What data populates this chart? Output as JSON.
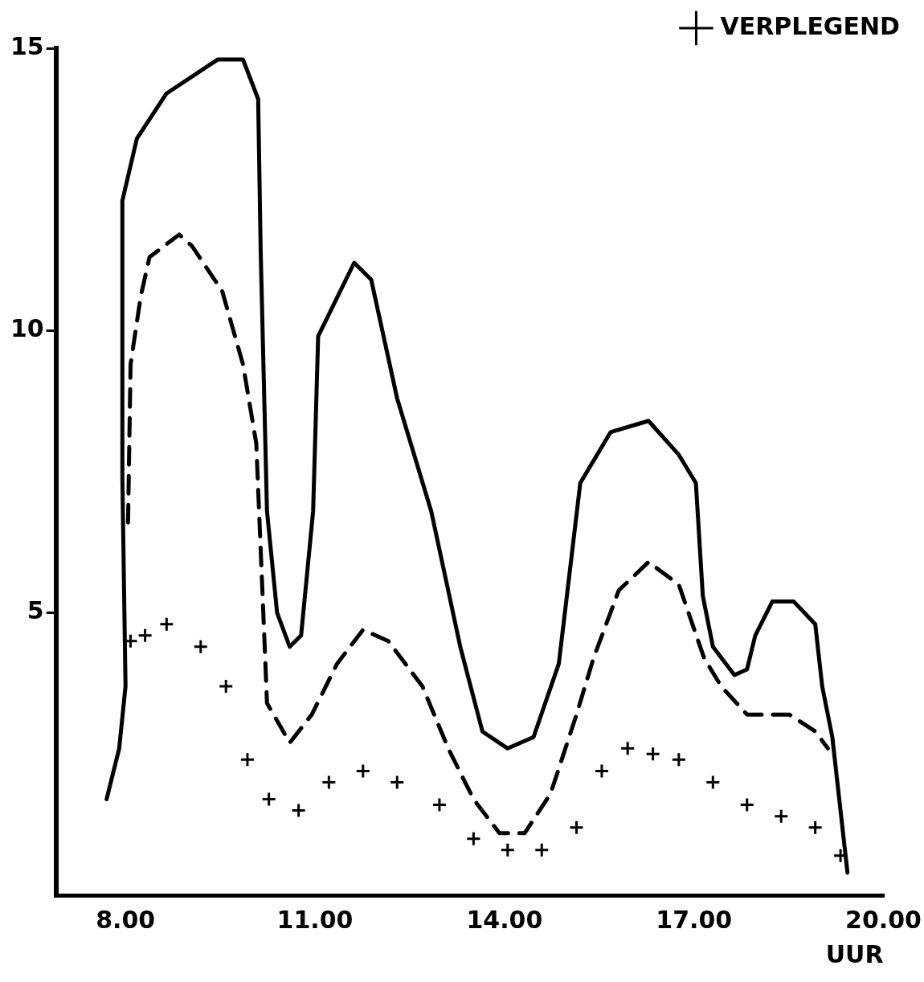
{
  "chart_data": {
    "type": "line",
    "xlabel": "UUR",
    "xlim": [
      6.9,
      20.0
    ],
    "ylim": [
      0,
      15
    ],
    "xticks": [
      {
        "value": 8,
        "label": "8.00"
      },
      {
        "value": 11,
        "label": "11.00"
      },
      {
        "value": 14,
        "label": "14.00"
      },
      {
        "value": 17,
        "label": "17.00"
      },
      {
        "value": 20,
        "label": "20.00"
      }
    ],
    "yticks": [
      5,
      10,
      15
    ],
    "grid": false,
    "legend": "top right",
    "series": [
      {
        "type": "line",
        "color": "#000000",
        "line_style": "solid",
        "marker": "none",
        "x": [
          7.7,
          7.9,
          8.0,
          7.95,
          7.95,
          8.18,
          8.65,
          9.46,
          9.86,
          10.1,
          10.14,
          10.24,
          10.4,
          10.6,
          10.78,
          10.97,
          11.05,
          11.62,
          11.89,
          12.3,
          12.84,
          13.3,
          13.65,
          14.05,
          14.46,
          14.86,
          15.2,
          15.68,
          16.28,
          16.76,
          17.03,
          17.14,
          17.3,
          17.64,
          17.84,
          17.97,
          18.24,
          18.58,
          18.92,
          19.03,
          19.19,
          19.43
        ],
        "values": [
          1.7,
          2.6,
          3.7,
          7.4,
          12.3,
          13.4,
          14.2,
          14.8,
          14.8,
          14.1,
          11.4,
          6.8,
          5.0,
          4.4,
          4.6,
          6.8,
          9.9,
          11.2,
          10.9,
          8.8,
          6.8,
          4.4,
          2.9,
          2.6,
          2.8,
          4.1,
          7.3,
          8.2,
          8.4,
          7.8,
          7.3,
          5.3,
          4.4,
          3.9,
          4.0,
          4.6,
          5.2,
          5.2,
          4.8,
          3.7,
          2.8,
          0.4
        ]
      },
      {
        "type": "line",
        "color": "#000000",
        "line_style": "dashed",
        "marker": "none",
        "x": [
          8.04,
          8.08,
          8.24,
          8.38,
          8.85,
          9.05,
          9.53,
          9.86,
          10.07,
          10.2,
          10.24,
          10.6,
          10.95,
          11.35,
          11.76,
          12.16,
          12.7,
          13.11,
          13.51,
          13.92,
          14.32,
          14.73,
          15.14,
          15.41,
          15.81,
          16.28,
          16.76,
          17.16,
          17.43,
          17.84,
          18.51,
          18.92,
          19.12
        ],
        "values": [
          6.6,
          9.4,
          10.6,
          11.3,
          11.7,
          11.5,
          10.7,
          9.4,
          8.0,
          4.5,
          3.4,
          2.7,
          3.2,
          4.1,
          4.7,
          4.5,
          3.7,
          2.6,
          1.7,
          1.1,
          1.1,
          1.8,
          3.2,
          4.2,
          5.4,
          5.9,
          5.5,
          4.2,
          3.7,
          3.2,
          3.2,
          2.9,
          2.6
        ]
      },
      {
        "type": "scatter",
        "name": "VERPLEGEND",
        "color": "#000000",
        "marker": "cross",
        "x": [
          8.08,
          8.31,
          8.65,
          9.19,
          9.59,
          9.93,
          10.27,
          10.74,
          11.22,
          11.76,
          12.3,
          12.97,
          13.51,
          14.05,
          14.59,
          15.14,
          15.54,
          15.95,
          16.35,
          16.76,
          17.3,
          17.84,
          18.38,
          18.92,
          19.32
        ],
        "values": [
          4.5,
          4.6,
          4.8,
          4.4,
          3.7,
          2.4,
          1.7,
          1.5,
          2.0,
          2.2,
          2.0,
          1.6,
          1.0,
          0.8,
          0.8,
          1.2,
          2.2,
          2.6,
          2.5,
          2.4,
          2.0,
          1.6,
          1.4,
          1.2,
          0.7
        ]
      }
    ]
  }
}
